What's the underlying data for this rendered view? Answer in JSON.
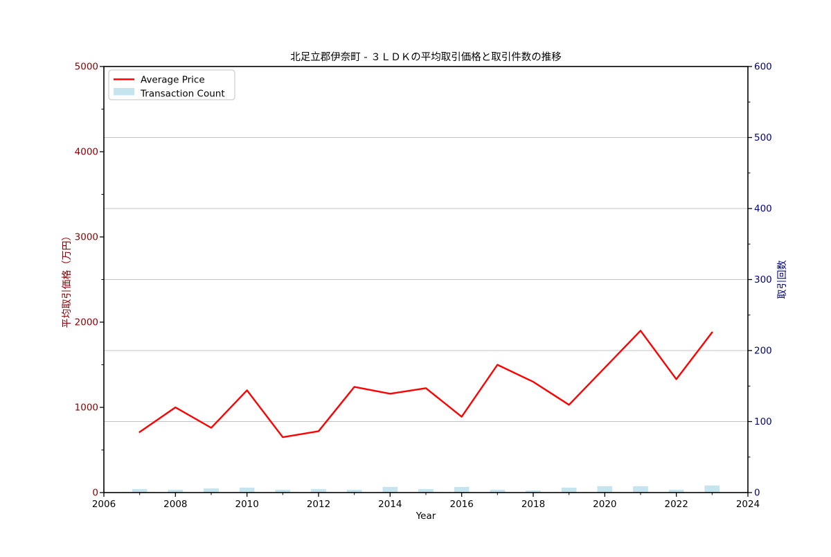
{
  "title": "北足立郡伊奈町 - ３ＬＤＫの平均取引価格と取引件数の推移",
  "legend": {
    "series1": "Average Price",
    "series2": "Transaction Count",
    "position": "upper left"
  },
  "colors": {
    "price_line": "#ff0000",
    "count_bar": "#add8e6",
    "left_axis_text": "#8B0000",
    "right_axis_text": "#000080",
    "grid": "#c3c3c3",
    "spine": "#000000",
    "title_text": "#000000"
  },
  "chart_data": {
    "type": "line+bar",
    "title": "北足立郡伊奈町 - ３ＬＤＫの平均取引価格と取引件数の推移",
    "xlabel": "Year",
    "ylabel_left": "平均取引価格（万円）",
    "ylabel_right": "取引回数",
    "x": [
      2007,
      2008,
      2009,
      2010,
      2011,
      2012,
      2013,
      2014,
      2015,
      2016,
      2017,
      2018,
      2019,
      2020,
      2021,
      2022,
      2023
    ],
    "series": [
      {
        "name": "Average Price",
        "type": "line",
        "axis": "left",
        "color": "#ff0000",
        "values": [
          710,
          1000,
          760,
          1200,
          650,
          720,
          1240,
          1160,
          1225,
          890,
          1500,
          1300,
          1030,
          1465,
          1900,
          1330,
          1880
        ]
      },
      {
        "name": "Transaction Count",
        "type": "bar",
        "axis": "right",
        "color": "#add8e6",
        "values": [
          5,
          4,
          6,
          7,
          4,
          5,
          4,
          8,
          5,
          8,
          4,
          3,
          7,
          9,
          9,
          4,
          10
        ]
      }
    ],
    "xlim": [
      2006,
      2024
    ],
    "ylim_left": [
      0,
      5000
    ],
    "ylim_right": [
      0,
      600
    ],
    "x_ticks": [
      2006,
      2008,
      2010,
      2012,
      2014,
      2016,
      2018,
      2020,
      2022,
      2024
    ],
    "y_left_ticks": [
      0,
      1000,
      2000,
      3000,
      4000,
      5000
    ],
    "y_right_ticks": [
      0,
      100,
      200,
      300,
      400,
      500,
      600
    ],
    "grid_right_values": [
      100,
      200,
      300,
      400,
      500
    ],
    "grid": "horizontal only",
    "legend_position": "upper left"
  }
}
